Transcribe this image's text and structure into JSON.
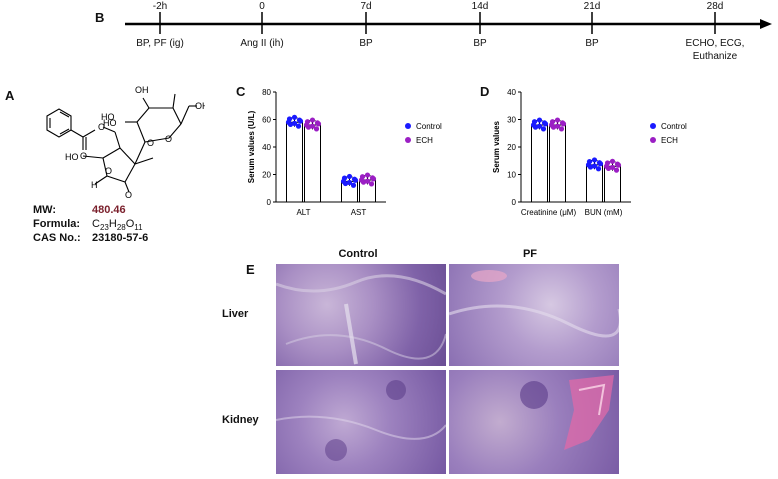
{
  "panel_letters": {
    "a": "A",
    "b": "B",
    "c": "C",
    "d": "D",
    "e": "E"
  },
  "timeline": {
    "ticks": [
      {
        "top": "-2h",
        "bottom": "BP, PF (ig)"
      },
      {
        "top": "0",
        "bottom": "Ang II (ih)"
      },
      {
        "top": "7d",
        "bottom": "BP"
      },
      {
        "top": "14d",
        "bottom": "BP"
      },
      {
        "top": "21d",
        "bottom": "BP"
      },
      {
        "top": "28d",
        "bottom": "ECHO, ECG,",
        "bottom2": "Euthanize"
      }
    ]
  },
  "compound": {
    "mw_label": "MW:",
    "mw_value": "480.46",
    "formula_label": "Formula:",
    "formula": "C23H28O11",
    "cas_label": "CAS No.:",
    "cas_value": "23180-57-6",
    "atoms": [
      "O",
      "O",
      "HO",
      "OH",
      "HO",
      "OH",
      "O",
      "O",
      "HO",
      "H",
      "O",
      "O"
    ]
  },
  "chart_data": [
    {
      "type": "bar",
      "panel": "C",
      "ylabel": "Serum values (U/L)",
      "ylim": [
        0,
        80
      ],
      "yticks": [
        0,
        20,
        40,
        60,
        80
      ],
      "categories": [
        "ALT",
        "AST"
      ],
      "series": [
        {
          "name": "Control",
          "values": [
            58,
            15
          ],
          "color": "#1a1aff"
        },
        {
          "name": "ECH",
          "values": [
            56,
            16
          ],
          "color": "#9b1fc4"
        }
      ]
    },
    {
      "type": "bar",
      "panel": "D",
      "ylabel": "Serum values",
      "ylim": [
        0,
        40
      ],
      "yticks": [
        0,
        10,
        20,
        30,
        40
      ],
      "categories": [
        "Creatinine (μM)",
        "BUN (mM)"
      ],
      "series": [
        {
          "name": "Control",
          "values": [
            28,
            13.5
          ],
          "color": "#1a1aff"
        },
        {
          "name": "ECH",
          "values": [
            28,
            13
          ],
          "color": "#9b1fc4"
        }
      ]
    }
  ],
  "histology": {
    "col_headers": [
      "Control",
      "PF"
    ],
    "row_labels": [
      "Liver",
      "Kidney"
    ]
  }
}
